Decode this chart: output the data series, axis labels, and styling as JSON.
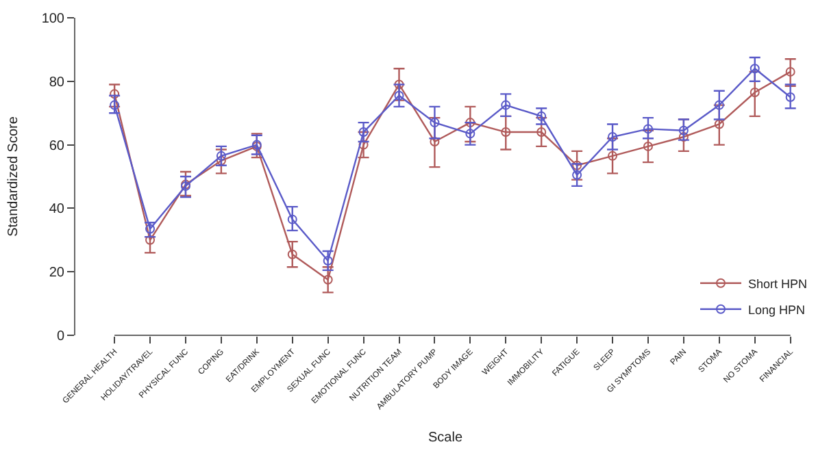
{
  "chart_data": {
    "type": "line",
    "xlabel": "Scale",
    "ylabel": "Standardized Score",
    "categories": [
      "GENERAL HEALTH",
      "HOLIDAY/TRAVEL",
      "PHYSICAL FUNC",
      "COPING",
      "EAT/DRINK",
      "EMPLOYMENT",
      "SEXUAL FUNC",
      "EMOTIONAL FUNC",
      "NUTRITION TEAM",
      "AMBULATORY PUMP",
      "BODY IMAGE",
      "WEIGHT",
      "IMMOBILITY",
      "FATIGUE",
      "SLEEP",
      "GI SYMPTOMS",
      "PAIN",
      "STOMA",
      "NO STOMA",
      "FINANCIAL"
    ],
    "series": [
      {
        "name": "Short HPN",
        "color": "#b05a5a",
        "values": [
          76,
          30,
          47.5,
          55,
          59.5,
          25.5,
          17.5,
          60,
          79,
          61,
          67,
          64,
          64,
          53.5,
          56.5,
          59.5,
          62.5,
          66.5,
          76.5,
          83
        ],
        "errors": [
          [
            72,
            79
          ],
          [
            26,
            31
          ],
          [
            44,
            51.5
          ],
          [
            51,
            58.5
          ],
          [
            56,
            63.5
          ],
          [
            21.5,
            29.5
          ],
          [
            13.5,
            21.5
          ],
          [
            56,
            64
          ],
          [
            74,
            84
          ],
          [
            53,
            68.5
          ],
          [
            61,
            72
          ],
          [
            58.5,
            69
          ],
          [
            59.5,
            68.5
          ],
          [
            49,
            58
          ],
          [
            51,
            62
          ],
          [
            54.5,
            64.5
          ],
          [
            58,
            68
          ],
          [
            60,
            72.5
          ],
          [
            69,
            83
          ],
          [
            78.5,
            87
          ]
        ]
      },
      {
        "name": "Long HPN",
        "color": "#5a5ac8",
        "values": [
          72.5,
          33.5,
          47,
          56.5,
          60,
          36.5,
          23.5,
          64,
          75.5,
          67,
          63.5,
          72.5,
          69,
          50.5,
          62.5,
          65,
          64.5,
          72.5,
          84,
          75
        ],
        "errors": [
          [
            70,
            75.5
          ],
          [
            31,
            35.5
          ],
          [
            43.5,
            50
          ],
          [
            53.5,
            59.5
          ],
          [
            57,
            63
          ],
          [
            33,
            40.5
          ],
          [
            20.5,
            26.5
          ],
          [
            61,
            67
          ],
          [
            72,
            79
          ],
          [
            62,
            72
          ],
          [
            60,
            67
          ],
          [
            69,
            76
          ],
          [
            66.5,
            71.5
          ],
          [
            47,
            54
          ],
          [
            58.5,
            66.5
          ],
          [
            62,
            68.5
          ],
          [
            61.5,
            68
          ],
          [
            68,
            77
          ],
          [
            80,
            87.5
          ],
          [
            71.5,
            79
          ]
        ]
      }
    ],
    "ylim": [
      0,
      100
    ],
    "yticks": [
      0,
      20,
      40,
      60,
      80,
      100
    ],
    "legend": "bottom right",
    "marker": "circle",
    "line_style": "solid"
  }
}
